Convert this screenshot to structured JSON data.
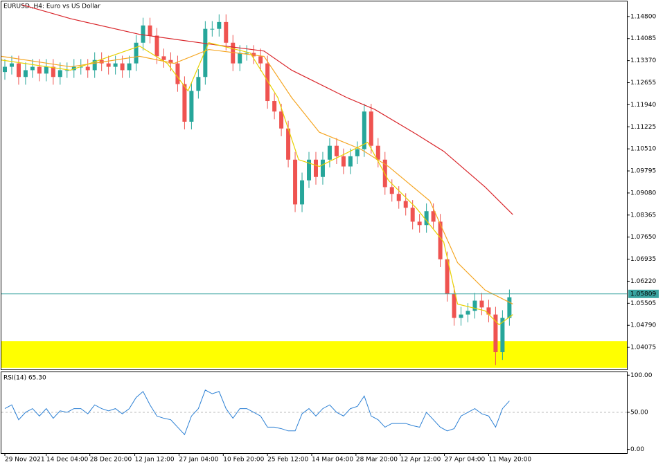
{
  "chart_data": [
    {
      "type": "candlestick",
      "title": "EURUSD.,H4:  Euro vs US Dollar",
      "xlim": [
        0,
        90.5
      ],
      "ylim": [
        1.0336,
        1.1529
      ],
      "yticks": [
        {
          "value": 1.148,
          "label": "1.14800"
        },
        {
          "value": 1.14085,
          "label": "1.14085"
        },
        {
          "value": 1.1337,
          "label": "1.13370"
        },
        {
          "value": 1.12655,
          "label": "1.12655"
        },
        {
          "value": 1.1194,
          "label": "1.11940"
        },
        {
          "value": 1.11225,
          "label": "1.11225"
        },
        {
          "value": 1.1051,
          "label": "1.10510"
        },
        {
          "value": 1.09795,
          "label": "1.09795"
        },
        {
          "value": 1.0908,
          "label": "1.09080"
        },
        {
          "value": 1.08365,
          "label": "1.08365"
        },
        {
          "value": 1.0765,
          "label": "1.07650"
        },
        {
          "value": 1.06935,
          "label": "1.06935"
        },
        {
          "value": 1.0622,
          "label": "1.06220"
        },
        {
          "value": 1.05505,
          "label": "1.05505"
        },
        {
          "value": 1.0479,
          "label": "1.04790"
        },
        {
          "value": 1.04075,
          "label": "1.04075"
        }
      ],
      "up_color": "#26a69a",
      "down_color": "#ef5350",
      "open": [
        1.13,
        1.1317,
        1.1328,
        1.1284,
        1.1306,
        1.1317,
        1.1295,
        1.1317,
        1.1284,
        1.1306,
        1.1306,
        1.1317,
        1.1317,
        1.1306,
        1.1339,
        1.1328,
        1.1317,
        1.1328,
        1.1306,
        1.1328,
        1.1395,
        1.1451,
        1.1418,
        1.1351,
        1.1339,
        1.1328,
        1.1261,
        1.1139,
        1.1239,
        1.1284,
        1.144,
        1.144,
        1.1462,
        1.1395,
        1.1328,
        1.1362,
        1.1362,
        1.1351,
        1.1328,
        1.1206,
        1.1172,
        1.1117,
        1.1016,
        1.0871,
        1.0949,
        1.1016,
        1.096,
        1.1016,
        1.1061,
        1.1027,
        1.0994,
        1.1027,
        1.105,
        1.1172,
        1.1061,
        1.1016,
        1.0927,
        1.0905,
        1.0882,
        1.086,
        1.0815,
        1.0804,
        1.0849,
        1.0815,
        1.0693,
        1.0581,
        1.0503,
        1.0514,
        1.0526,
        1.0559,
        1.0537,
        1.0514,
        1.0392,
        1.0503
      ],
      "high": [
        1.1342,
        1.1353,
        1.1353,
        1.1331,
        1.1342,
        1.1342,
        1.1342,
        1.1342,
        1.1331,
        1.1331,
        1.1342,
        1.1342,
        1.1342,
        1.1364,
        1.1364,
        1.1353,
        1.1353,
        1.1353,
        1.1353,
        1.142,
        1.1476,
        1.1476,
        1.1443,
        1.1376,
        1.1364,
        1.1353,
        1.1286,
        1.1264,
        1.1309,
        1.1465,
        1.1465,
        1.1487,
        1.1487,
        1.142,
        1.1387,
        1.1387,
        1.1387,
        1.1376,
        1.1353,
        1.1231,
        1.1197,
        1.1142,
        1.1041,
        1.0974,
        1.1041,
        1.1041,
        1.1041,
        1.1086,
        1.1086,
        1.1052,
        1.1052,
        1.1075,
        1.1197,
        1.1197,
        1.1086,
        1.1041,
        1.0952,
        1.093,
        1.0907,
        1.0885,
        1.084,
        1.0874,
        1.0874,
        1.084,
        1.0718,
        1.0606,
        1.0539,
        1.0551,
        1.0584,
        1.0584,
        1.0562,
        1.0539,
        1.0528,
        1.0595
      ],
      "low": [
        1.1275,
        1.1292,
        1.1259,
        1.1259,
        1.1281,
        1.127,
        1.127,
        1.1259,
        1.1259,
        1.1281,
        1.1281,
        1.1292,
        1.1281,
        1.1281,
        1.1303,
        1.1292,
        1.1292,
        1.1281,
        1.1281,
        1.1303,
        1.137,
        1.1393,
        1.1326,
        1.1314,
        1.1303,
        1.1236,
        1.1114,
        1.1114,
        1.1214,
        1.1259,
        1.1415,
        1.1415,
        1.137,
        1.1303,
        1.1303,
        1.1337,
        1.1326,
        1.1303,
        1.1181,
        1.1147,
        1.1092,
        1.0991,
        1.0846,
        1.0846,
        1.0924,
        1.0935,
        1.0935,
        1.0991,
        1.1002,
        1.0969,
        1.0969,
        1.1002,
        1.1025,
        1.1036,
        1.0991,
        1.0902,
        1.088,
        1.0857,
        1.0835,
        1.079,
        1.0779,
        1.0779,
        1.079,
        1.0668,
        1.0556,
        1.0478,
        1.0478,
        1.0489,
        1.0501,
        1.0512,
        1.0489,
        1.035,
        1.0367,
        1.0478
      ],
      "close": [
        1.1317,
        1.1328,
        1.1284,
        1.1306,
        1.1317,
        1.1295,
        1.1317,
        1.1284,
        1.1306,
        1.1306,
        1.1317,
        1.1317,
        1.1306,
        1.1339,
        1.1328,
        1.1317,
        1.1328,
        1.1306,
        1.1328,
        1.1395,
        1.1451,
        1.1418,
        1.1351,
        1.1339,
        1.1328,
        1.1261,
        1.1139,
        1.1239,
        1.1284,
        1.144,
        1.144,
        1.1462,
        1.1395,
        1.1328,
        1.1362,
        1.1362,
        1.1351,
        1.1328,
        1.1206,
        1.1172,
        1.1117,
        1.1016,
        1.0871,
        1.0949,
        1.1016,
        1.096,
        1.1016,
        1.1061,
        1.1027,
        1.0994,
        1.1027,
        1.105,
        1.1172,
        1.1061,
        1.1016,
        1.0927,
        1.0905,
        1.0882,
        1.086,
        1.0815,
        1.0804,
        1.0849,
        1.0815,
        1.0693,
        1.0581,
        1.0503,
        1.0514,
        1.0526,
        1.0559,
        1.0537,
        1.0514,
        1.0392,
        1.0503,
        1.057
      ],
      "series": [
        {
          "color": "#d9252a",
          "x": [
            3,
            10,
            20,
            30,
            38,
            42,
            50,
            54,
            60,
            64,
            70,
            74
          ],
          "values": [
            1.1518,
            1.1473,
            1.1422,
            1.1391,
            1.1368,
            1.1306,
            1.1217,
            1.1179,
            1.1099,
            1.1043,
            1.0927,
            1.0838
          ]
        },
        {
          "color": "#f5a623",
          "x": [
            0,
            10,
            20,
            25,
            30,
            38,
            42,
            46,
            52,
            56,
            62,
            66,
            70,
            74
          ],
          "values": [
            1.1351,
            1.1317,
            1.1351,
            1.1328,
            1.1373,
            1.1351,
            1.1217,
            1.1105,
            1.105,
            1.0994,
            1.0882,
            1.0682,
            1.0593,
            1.0548
          ]
        },
        {
          "color": "#e8d000",
          "x": [
            0,
            10,
            20,
            24,
            27,
            30,
            36,
            40,
            43,
            46,
            50,
            53,
            56,
            60,
            64,
            66,
            70,
            72,
            74
          ],
          "values": [
            1.1339,
            1.1306,
            1.1384,
            1.1328,
            1.1239,
            1.1395,
            1.1362,
            1.1217,
            1.1016,
            1.0994,
            1.1038,
            1.1072,
            1.0949,
            1.086,
            1.0749,
            1.0548,
            1.0526,
            1.0481,
            1.0514
          ]
        }
      ],
      "hline": {
        "value": 1.05809,
        "label": "1.05809",
        "color": "#3aa3a0"
      },
      "zone": {
        "range": [
          1.0341,
          1.04276
        ],
        "color": "#ffff00"
      }
    },
    {
      "type": "line",
      "title": "RSI(14) 65.30",
      "color": "#2a7fd4",
      "xlim": [
        0,
        90.5
      ],
      "ylim": [
        -5,
        104
      ],
      "yticks": [
        {
          "value": 100,
          "label": "100.00"
        },
        {
          "value": 50,
          "label": "50.00"
        },
        {
          "value": 0,
          "label": "0.00"
        }
      ],
      "values": [
        55,
        60,
        40,
        50,
        55,
        45,
        55,
        42,
        52,
        50,
        55,
        55,
        48,
        60,
        55,
        52,
        55,
        48,
        55,
        70,
        78,
        60,
        45,
        42,
        40,
        30,
        20,
        45,
        55,
        80,
        75,
        78,
        55,
        42,
        55,
        55,
        50,
        45,
        30,
        30,
        28,
        25,
        25,
        48,
        55,
        45,
        55,
        60,
        50,
        45,
        55,
        58,
        72,
        45,
        40,
        30,
        35,
        35,
        35,
        32,
        30,
        50,
        40,
        30,
        25,
        28,
        45,
        50,
        55,
        48,
        45,
        30,
        55,
        65.3
      ],
      "xticks": [
        {
          "value": 0.5,
          "label": "29 Nov 2021"
        },
        {
          "value": 6.5,
          "label": "14 Dec 04:00"
        },
        {
          "value": 12.8,
          "label": "28 Dec 20:00"
        },
        {
          "value": 19.3,
          "label": "12 Jan 12:00"
        },
        {
          "value": 25.7,
          "label": "27 Jan 04:00"
        },
        {
          "value": 32.1,
          "label": "10 Feb 20:00"
        },
        {
          "value": 38.5,
          "label": "25 Feb 12:00"
        },
        {
          "value": 44.9,
          "label": "14 Mar 04:00"
        },
        {
          "value": 51.3,
          "label": "28 Mar 20:00"
        },
        {
          "value": 57.7,
          "label": "12 Apr 12:00"
        },
        {
          "value": 64.1,
          "label": "27 Apr 04:00"
        },
        {
          "value": 70.5,
          "label": "11 May 20:00"
        }
      ]
    }
  ]
}
